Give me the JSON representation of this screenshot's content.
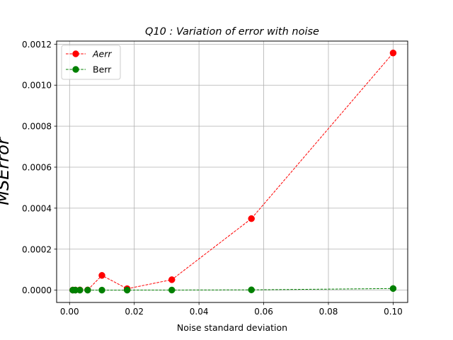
{
  "chart_data": {
    "type": "line",
    "title": "Q10 : Variation of error with noise",
    "xlabel": "Noise standard deviation",
    "ylabel": "MSError",
    "xlim": [
      -0.004,
      0.1045
    ],
    "ylim": [
      -6e-05,
      0.001215
    ],
    "x_ticks": [
      "0.00",
      "0.02",
      "0.04",
      "0.06",
      "0.08",
      "0.10"
    ],
    "x_tick_values": [
      0,
      0.02,
      0.04,
      0.06,
      0.08,
      0.1
    ],
    "y_ticks": [
      "0.0000",
      "0.0002",
      "0.0004",
      "0.0006",
      "0.0008",
      "0.0010",
      "0.0012"
    ],
    "y_tick_values": [
      0,
      0.0002,
      0.0004,
      0.0006,
      0.0008,
      0.001,
      0.0012
    ],
    "grid": true,
    "legend_position": "top-left",
    "x": [
      0.001,
      0.0018,
      0.0032,
      0.0056,
      0.01,
      0.0178,
      0.0316,
      0.0562,
      0.1
    ],
    "series": [
      {
        "name": "Aerr",
        "legend_italic": true,
        "color": "#ff0000",
        "line_style": "dashed",
        "marker": "circle",
        "values": [
          5e-07,
          5e-07,
          1e-06,
          1e-06,
          7.2e-05,
          7e-06,
          5.1e-05,
          0.000349,
          0.001157
        ]
      },
      {
        "name": "Berr",
        "legend_italic": false,
        "color": "#008000",
        "line_style": "dashed",
        "marker": "circle",
        "values": [
          2e-07,
          2e-07,
          2e-07,
          2e-07,
          2e-07,
          2e-07,
          5e-07,
          1.5e-06,
          8e-06
        ]
      }
    ]
  }
}
